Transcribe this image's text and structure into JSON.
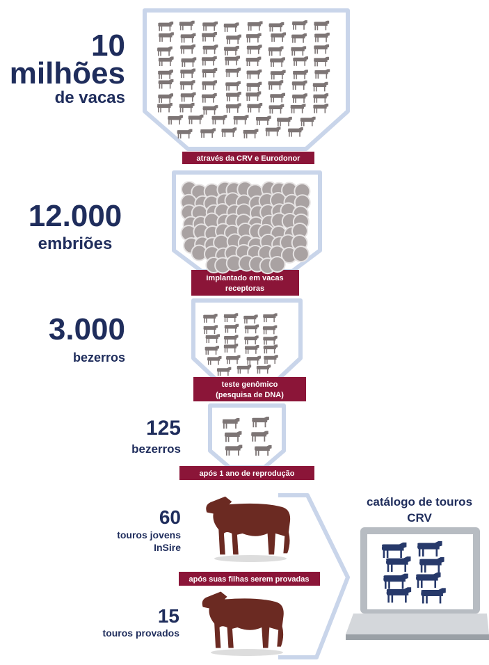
{
  "stages": [
    {
      "number": "10",
      "lines": [
        "milhões",
        "de vacas"
      ]
    },
    {
      "number": "12.000",
      "lines": [
        "embriões"
      ]
    },
    {
      "number": "3.000",
      "lines": [
        "bezerros"
      ]
    },
    {
      "number": "125",
      "lines": [
        "bezerros"
      ]
    },
    {
      "number": "60",
      "lines": [
        "touros jovens",
        "InSire"
      ]
    },
    {
      "number": "15",
      "lines": [
        "touros provados"
      ]
    }
  ],
  "banners": [
    [
      "através da CRV e Eurodonor"
    ],
    [
      "implantado em vacas",
      "receptoras"
    ],
    [
      "teste genômico",
      "(pesquisa de DNA)"
    ],
    [
      "após 1 ano de reprodução"
    ],
    [
      "após suas filhas serem provadas"
    ]
  ],
  "catalog": {
    "title": [
      "catálogo de touros",
      "CRV"
    ]
  }
}
